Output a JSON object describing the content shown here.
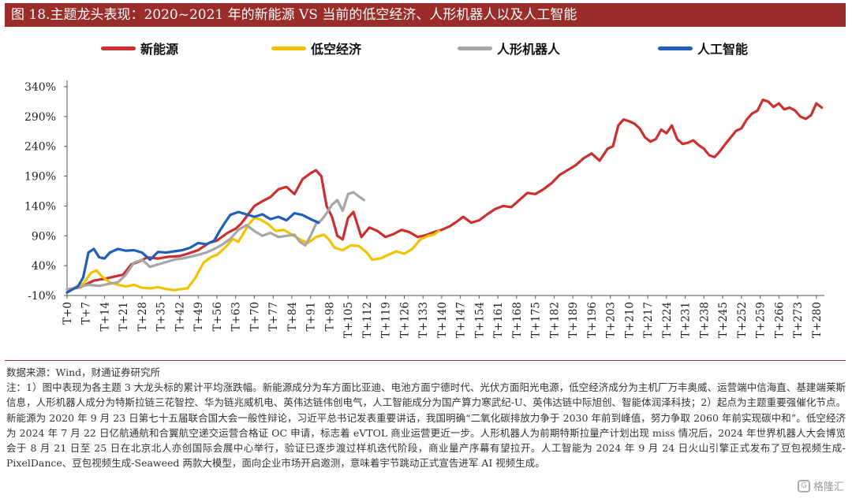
{
  "header": {
    "title": "图 18.主题龙头表现：2020~2021 年的新能源 VS 当前的低空经济、人形机器人以及人工智能"
  },
  "colors": {
    "header_bg": "#9a2c2a",
    "new_energy": "#cc2f2f",
    "low_altitude": "#f2c200",
    "humanoid": "#a6a6a6",
    "ai": "#1f5fb8"
  },
  "chart_data": {
    "type": "line",
    "x_tick_labels": [
      "T+0",
      "T+7",
      "T+14",
      "T+21",
      "T+28",
      "T+35",
      "T+42",
      "T+49",
      "T+56",
      "T+63",
      "T+70",
      "T+77",
      "T+84",
      "T+91",
      "T+98",
      "T+105",
      "T+112",
      "T+119",
      "T+126",
      "T+133",
      "T+140",
      "T+147",
      "T+154",
      "T+161",
      "T+168",
      "T+175",
      "T+182",
      "T+189",
      "T+196",
      "T+203",
      "T+210",
      "T+217",
      "T+224",
      "T+231",
      "T+238",
      "T+245",
      "T+252",
      "T+259",
      "T+266",
      "T+273",
      "T+280"
    ],
    "y_tick_labels": [
      "-10%",
      "40%",
      "90%",
      "140%",
      "190%",
      "240%",
      "290%",
      "340%"
    ],
    "ylim": [
      -10,
      340
    ],
    "xlim": [
      0,
      283
    ],
    "legend_position": "top",
    "series": [
      {
        "name": "新能源",
        "color": "#cc2f2f",
        "points": [
          [
            0,
            0
          ],
          [
            5,
            4
          ],
          [
            10,
            15
          ],
          [
            14,
            18
          ],
          [
            18,
            22
          ],
          [
            21,
            25
          ],
          [
            24,
            42
          ],
          [
            27,
            47
          ],
          [
            30,
            54
          ],
          [
            34,
            52
          ],
          [
            38,
            55
          ],
          [
            42,
            56
          ],
          [
            45,
            60
          ],
          [
            49,
            66
          ],
          [
            53,
            78
          ],
          [
            56,
            82
          ],
          [
            60,
            95
          ],
          [
            63,
            102
          ],
          [
            65,
            110
          ],
          [
            67,
            122
          ],
          [
            70,
            140
          ],
          [
            73,
            148
          ],
          [
            76,
            155
          ],
          [
            79,
            168
          ],
          [
            82,
            172
          ],
          [
            85,
            160
          ],
          [
            88,
            185
          ],
          [
            91,
            195
          ],
          [
            93,
            200
          ],
          [
            95,
            190
          ],
          [
            97,
            140
          ],
          [
            99,
            122
          ],
          [
            101,
            90
          ],
          [
            103,
            84
          ],
          [
            105,
            120
          ],
          [
            107,
            130
          ],
          [
            110,
            88
          ],
          [
            113,
            104
          ],
          [
            116,
            98
          ],
          [
            119,
            88
          ],
          [
            122,
            93
          ],
          [
            125,
            100
          ],
          [
            128,
            96
          ],
          [
            131,
            88
          ],
          [
            134,
            91
          ],
          [
            137,
            96
          ],
          [
            140,
            100
          ],
          [
            143,
            106
          ],
          [
            146,
            115
          ],
          [
            148,
            122
          ],
          [
            151,
            112
          ],
          [
            154,
            116
          ],
          [
            157,
            126
          ],
          [
            160,
            135
          ],
          [
            163,
            140
          ],
          [
            166,
            138
          ],
          [
            169,
            150
          ],
          [
            172,
            162
          ],
          [
            175,
            160
          ],
          [
            178,
            168
          ],
          [
            181,
            178
          ],
          [
            184,
            192
          ],
          [
            187,
            200
          ],
          [
            190,
            208
          ],
          [
            193,
            220
          ],
          [
            196,
            228
          ],
          [
            199,
            216
          ],
          [
            202,
            236
          ],
          [
            204,
            240
          ],
          [
            206,
            275
          ],
          [
            208,
            285
          ],
          [
            210,
            282
          ],
          [
            212,
            278
          ],
          [
            214,
            270
          ],
          [
            216,
            255
          ],
          [
            218,
            248
          ],
          [
            220,
            252
          ],
          [
            222,
            268
          ],
          [
            224,
            262
          ],
          [
            226,
            275
          ],
          [
            228,
            252
          ],
          [
            230,
            244
          ],
          [
            232,
            246
          ],
          [
            234,
            250
          ],
          [
            236,
            242
          ],
          [
            238,
            236
          ],
          [
            240,
            225
          ],
          [
            242,
            222
          ],
          [
            244,
            232
          ],
          [
            246,
            244
          ],
          [
            248,
            255
          ],
          [
            250,
            266
          ],
          [
            252,
            270
          ],
          [
            254,
            285
          ],
          [
            256,
            295
          ],
          [
            258,
            300
          ],
          [
            260,
            318
          ],
          [
            262,
            315
          ],
          [
            264,
            306
          ],
          [
            266,
            312
          ],
          [
            268,
            302
          ],
          [
            270,
            305
          ],
          [
            272,
            300
          ],
          [
            274,
            290
          ],
          [
            276,
            286
          ],
          [
            278,
            292
          ],
          [
            280,
            312
          ],
          [
            282,
            305
          ]
        ]
      },
      {
        "name": "低空经济",
        "color": "#f2c200",
        "points": [
          [
            0,
            -5
          ],
          [
            3,
            4
          ],
          [
            6,
            10
          ],
          [
            9,
            28
          ],
          [
            11,
            32
          ],
          [
            13,
            22
          ],
          [
            16,
            12
          ],
          [
            19,
            8
          ],
          [
            22,
            5
          ],
          [
            25,
            8
          ],
          [
            28,
            3
          ],
          [
            31,
            2
          ],
          [
            34,
            4
          ],
          [
            37,
            1
          ],
          [
            40,
            -1
          ],
          [
            43,
            1
          ],
          [
            45,
            2
          ],
          [
            48,
            20
          ],
          [
            51,
            45
          ],
          [
            54,
            55
          ],
          [
            56,
            58
          ],
          [
            59,
            70
          ],
          [
            62,
            85
          ],
          [
            64,
            80
          ],
          [
            66,
            95
          ],
          [
            68,
            110
          ],
          [
            70,
            120
          ],
          [
            72,
            118
          ],
          [
            75,
            110
          ],
          [
            78,
            98
          ],
          [
            81,
            100
          ],
          [
            84,
            92
          ],
          [
            87,
            84
          ],
          [
            90,
            78
          ],
          [
            93,
            88
          ],
          [
            96,
            92
          ],
          [
            98,
            83
          ],
          [
            100,
            70
          ],
          [
            103,
            66
          ],
          [
            106,
            74
          ],
          [
            109,
            73
          ],
          [
            112,
            62
          ],
          [
            114,
            50
          ],
          [
            117,
            52
          ],
          [
            120,
            58
          ],
          [
            123,
            64
          ],
          [
            126,
            60
          ],
          [
            129,
            68
          ],
          [
            132,
            84
          ],
          [
            135,
            90
          ],
          [
            137,
            92
          ],
          [
            139,
            98
          ]
        ]
      },
      {
        "name": "人形机器人",
        "color": "#a6a6a6",
        "points": [
          [
            0,
            0
          ],
          [
            4,
            4
          ],
          [
            8,
            8
          ],
          [
            12,
            6
          ],
          [
            16,
            10
          ],
          [
            19,
            12
          ],
          [
            22,
            25
          ],
          [
            25,
            45
          ],
          [
            28,
            50
          ],
          [
            31,
            38
          ],
          [
            34,
            42
          ],
          [
            37,
            46
          ],
          [
            40,
            50
          ],
          [
            43,
            52
          ],
          [
            46,
            55
          ],
          [
            49,
            58
          ],
          [
            52,
            62
          ],
          [
            55,
            68
          ],
          [
            58,
            75
          ],
          [
            61,
            85
          ],
          [
            64,
            100
          ],
          [
            67,
            108
          ],
          [
            70,
            98
          ],
          [
            73,
            90
          ],
          [
            76,
            95
          ],
          [
            79,
            88
          ],
          [
            82,
            90
          ],
          [
            85,
            92
          ],
          [
            87,
            80
          ],
          [
            89,
            74
          ],
          [
            91,
            90
          ],
          [
            93,
            110
          ],
          [
            95,
            116
          ],
          [
            97,
            128
          ],
          [
            99,
            142
          ],
          [
            101,
            150
          ],
          [
            103,
            132
          ],
          [
            105,
            160
          ],
          [
            107,
            163
          ],
          [
            109,
            156
          ],
          [
            111,
            150
          ]
        ]
      },
      {
        "name": "人工智能",
        "color": "#1f5fb8",
        "points": [
          [
            0,
            -5
          ],
          [
            2,
            0
          ],
          [
            4,
            5
          ],
          [
            6,
            20
          ],
          [
            8,
            62
          ],
          [
            10,
            68
          ],
          [
            12,
            54
          ],
          [
            14,
            52
          ],
          [
            16,
            62
          ],
          [
            19,
            68
          ],
          [
            22,
            65
          ],
          [
            25,
            66
          ],
          [
            28,
            62
          ],
          [
            31,
            50
          ],
          [
            34,
            63
          ],
          [
            37,
            62
          ],
          [
            40,
            64
          ],
          [
            43,
            66
          ],
          [
            46,
            70
          ],
          [
            49,
            78
          ],
          [
            52,
            76
          ],
          [
            55,
            82
          ],
          [
            57,
            98
          ],
          [
            59,
            112
          ],
          [
            61,
            125
          ],
          [
            64,
            130
          ],
          [
            67,
            126
          ],
          [
            70,
            122
          ],
          [
            73,
            126
          ],
          [
            76,
            118
          ],
          [
            79,
            122
          ],
          [
            82,
            116
          ],
          [
            85,
            128
          ],
          [
            88,
            125
          ],
          [
            91,
            118
          ],
          [
            94,
            112
          ]
        ]
      }
    ]
  },
  "footer": {
    "source": "数据来源：Wind，财通证券研究所",
    "note": "注：1）图中表现为各主题 3 大龙头标的累计平均涨跌幅。新能源成分为车方面比亚迪、电池方面宁德时代、光伏方面阳光电源，低空经济成分为主机厂万丰奥威、运营端中信海直、基建端莱斯信息，人形机器人成分为特斯拉链三花智控、华为链兆威机电、英伟达链伟创电气，人工智能成分为国产算力寒武纪-U、英伟达链中际旭创、智能体润泽科技；2）起点为主题重要强催化节点。新能源为 2020 年 9 月 23 日第七十五届联合国大会一般性辩论，习近平总书记发表重要讲话，我国明确“二氧化碳排放力争于 2030 年前到峰值，努力争取 2060 年前实现碳中和”。低空经济为 2024 年 7 月 22 日亿航通航和合翼航空递交运营合格证 OC 申请，标志着 eVTOL 商业运营更近一步。人形机器人为前期特斯拉量产计划出现 miss 情况后，2024 年世界机器人大会博览会于 8 月 21 日至 25 日在北京北人亦创国际会展中心举行，验证已逐步渡过样机迭代阶段，商业量产序幕有望拉开。人工智能为 2024 年 9 月 24 日火山引擎正式发布了豆包视频生成-PixelDance、豆包视频生成-Seaweed 两款大模型，面向企业市场开启邀测，意味着宇节跳动正式宣告进军 AI 视频生成。"
  },
  "watermark": {
    "text": "格隆汇",
    "icon": "gelonghui-logo-icon"
  }
}
